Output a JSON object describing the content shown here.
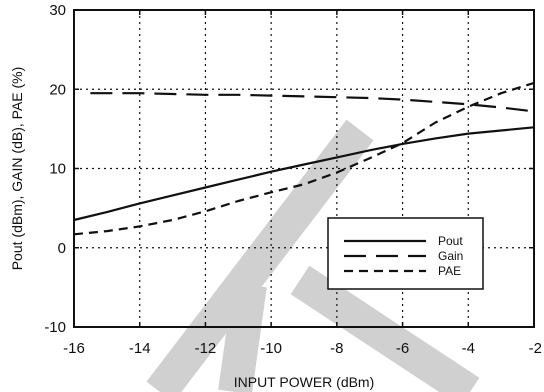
{
  "chart_data": {
    "type": "line",
    "title": "",
    "xlabel": "INPUT POWER (dBm)",
    "ylabel": "Pout (dBm), GAIN (dB), PAE (%)",
    "xlim": [
      -16,
      -2
    ],
    "ylim": [
      -10,
      30
    ],
    "xticks": [
      -16,
      -14,
      -12,
      -10,
      -8,
      -6,
      -4,
      -2
    ],
    "yticks": [
      -10,
      0,
      10,
      20,
      30
    ],
    "grid": true,
    "legend_position": "lower-right",
    "series": [
      {
        "name": "Pout",
        "style": "solid",
        "color": "#111111",
        "x": [
          -16,
          -15,
          -14,
          -13,
          -12,
          -11,
          -10,
          -9,
          -8,
          -7,
          -6,
          -5,
          -4,
          -3,
          -2
        ],
        "y": [
          3.5,
          4.5,
          5.6,
          6.6,
          7.6,
          8.6,
          9.6,
          10.5,
          11.4,
          12.3,
          13.1,
          13.8,
          14.4,
          14.8,
          15.2
        ]
      },
      {
        "name": "Gain",
        "style": "long-dash",
        "color": "#111111",
        "x": [
          -15.5,
          -15,
          -14,
          -13,
          -12,
          -11,
          -10,
          -9,
          -8,
          -7,
          -6,
          -5,
          -4,
          -3,
          -2
        ],
        "y": [
          19.5,
          19.5,
          19.5,
          19.4,
          19.3,
          19.3,
          19.2,
          19.1,
          19.0,
          18.9,
          18.7,
          18.4,
          18.1,
          17.7,
          17.2
        ]
      },
      {
        "name": "PAE",
        "style": "short-dash",
        "color": "#111111",
        "x": [
          -16,
          -15,
          -14,
          -13,
          -12,
          -11,
          -10,
          -9,
          -8,
          -7,
          -6,
          -5,
          -4,
          -3,
          -2
        ],
        "y": [
          1.7,
          2.1,
          2.7,
          3.5,
          4.6,
          5.9,
          7.0,
          8.0,
          9.5,
          11.3,
          13.2,
          15.8,
          17.8,
          19.5,
          20.8
        ]
      }
    ],
    "watermark_color": "#d0d0d0"
  }
}
